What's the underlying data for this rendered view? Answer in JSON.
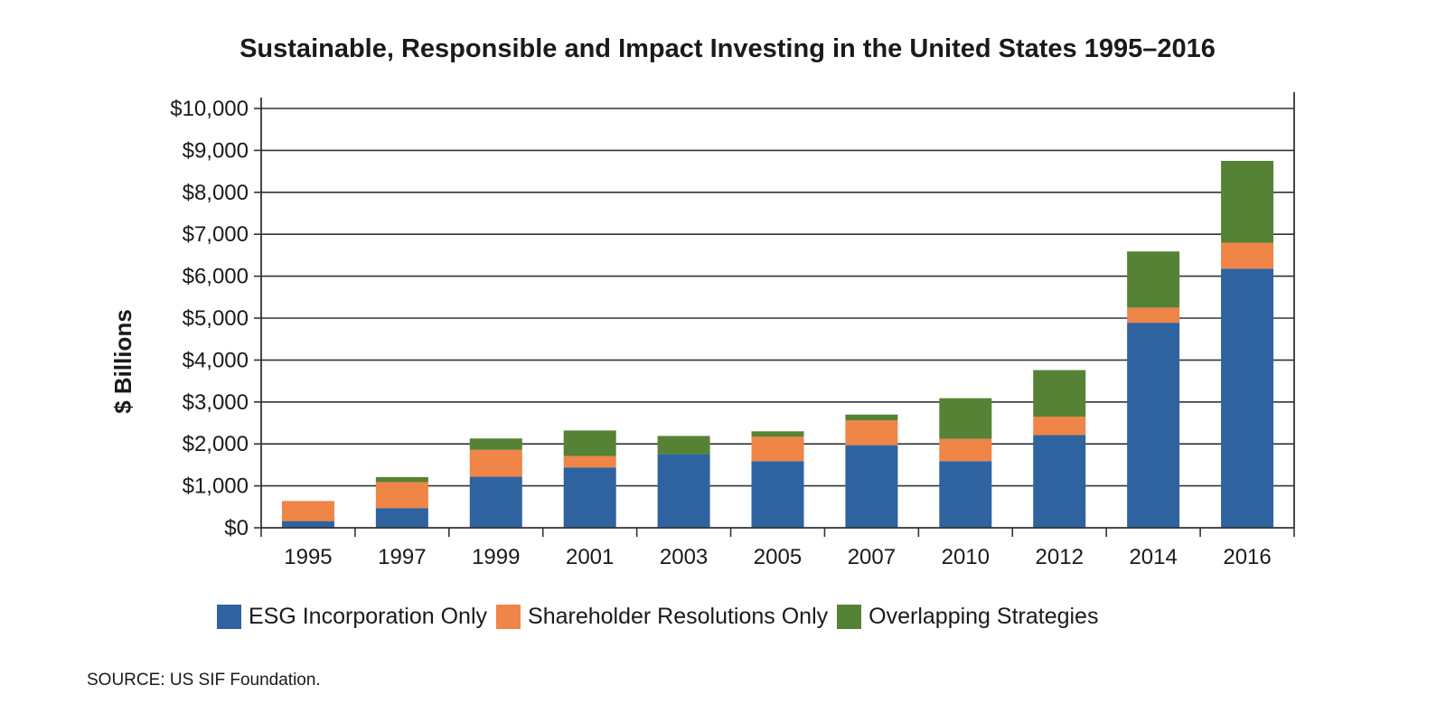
{
  "chart_data": {
    "type": "bar",
    "stacked": true,
    "title": "Sustainable, Responsible and Impact Investing in the United States 1995–2016",
    "ylabel": "$ Billions",
    "xlabel": "",
    "ylim": [
      0,
      10000
    ],
    "ytick_values": [
      0,
      1000,
      2000,
      3000,
      4000,
      5000,
      6000,
      7000,
      8000,
      9000,
      10000
    ],
    "ytick_labels": [
      "$0",
      "$1,000",
      "$2,000",
      "$3,000",
      "$4,000",
      "$5,000",
      "$6,000",
      "$7,000",
      "$8,000",
      "$9,000",
      "$10,000"
    ],
    "categories": [
      "1995",
      "1997",
      "1999",
      "2001",
      "2003",
      "2005",
      "2007",
      "2010",
      "2012",
      "2014",
      "2016"
    ],
    "grid": "horizontal",
    "legend_position": "bottom",
    "series": [
      {
        "name": "ESG Incorporation Only",
        "color": "#2e63a0",
        "values": [
          160,
          470,
          1220,
          1440,
          1760,
          1590,
          1970,
          1590,
          2210,
          4890,
          6180
        ]
      },
      {
        "name": "Shareholder Resolutions Only",
        "color": "#ef8547",
        "values": [
          480,
          620,
          640,
          270,
          0,
          580,
          590,
          530,
          440,
          360,
          620
        ]
      },
      {
        "name": "Overlapping Strategies",
        "color": "#568236",
        "values": [
          0,
          120,
          270,
          610,
          430,
          130,
          140,
          970,
          1110,
          1340,
          1950
        ]
      }
    ],
    "source": "SOURCE:  US SIF Foundation."
  }
}
